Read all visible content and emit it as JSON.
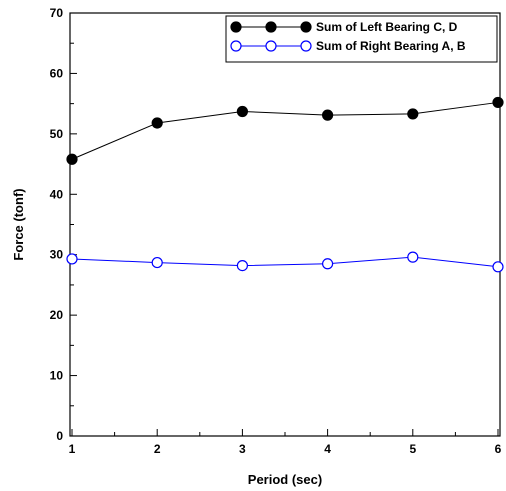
{
  "chart_data": {
    "type": "line",
    "title": "",
    "xlabel": "Period (sec)",
    "ylabel": "Force (tonf)",
    "xlim": [
      1,
      6
    ],
    "ylim": [
      0,
      70
    ],
    "x_ticks": [
      "1",
      "2",
      "3",
      "4",
      "5",
      "6"
    ],
    "y_ticks": [
      "0",
      "10",
      "20",
      "30",
      "40",
      "50",
      "60",
      "70"
    ],
    "grid": false,
    "legend_position": "top-right",
    "series": [
      {
        "name": "Sum of Left Bearing C, D",
        "x": [
          1,
          2,
          3,
          4,
          5,
          6
        ],
        "values": [
          45.8,
          51.8,
          53.7,
          53.1,
          53.3,
          55.2
        ],
        "marker": "filled-circle",
        "line_color": "#000000",
        "marker_color": "#000000"
      },
      {
        "name": "Sum of Right Bearing A, B",
        "x": [
          1,
          2,
          3,
          4,
          5,
          6
        ],
        "values": [
          29.3,
          28.7,
          28.2,
          28.5,
          29.6,
          28.0
        ],
        "marker": "open-circle",
        "line_color": "#0000ff",
        "marker_color": "#0000ff"
      }
    ]
  }
}
